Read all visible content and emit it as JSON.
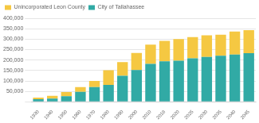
{
  "chart_data": {
    "type": "bar",
    "stacked": true,
    "categories": [
      "1930",
      "1940",
      "1950",
      "1960",
      "1970",
      "1980",
      "1990",
      "2000",
      "2010",
      "2018",
      "2020",
      "2025",
      "2030",
      "2035",
      "2040",
      "2045"
    ],
    "series": [
      {
        "name": "City of Tallahassee",
        "color": "#31aaa5",
        "values": [
          13000,
          16000,
          27000,
          48000,
          71000,
          81000,
          125000,
          152000,
          182000,
          194000,
          197000,
          208000,
          215000,
          221000,
          226000,
          233000
        ]
      },
      {
        "name": "Unincorporated Leon County",
        "color": "#f5c842",
        "values": [
          7000,
          13000,
          20000,
          23000,
          29000,
          70000,
          65000,
          82000,
          92000,
          98000,
          103000,
          102000,
          103000,
          100000,
          110000,
          110000
        ]
      }
    ],
    "ylim": [
      0,
      400000
    ],
    "yticks": [
      {
        "value": 0,
        "label": ""
      },
      {
        "value": 50000,
        "label": "50,000"
      },
      {
        "value": 100000,
        "label": "100,000"
      },
      {
        "value": 150000,
        "label": "150,000"
      },
      {
        "value": 200000,
        "label": "200,000"
      },
      {
        "value": 250000,
        "label": "250,000"
      },
      {
        "value": 300000,
        "label": "300,000"
      },
      {
        "value": 350000,
        "label": "350,000"
      },
      {
        "value": 400000,
        "label": "400,000"
      }
    ],
    "grid": true,
    "legend": "upper left"
  }
}
